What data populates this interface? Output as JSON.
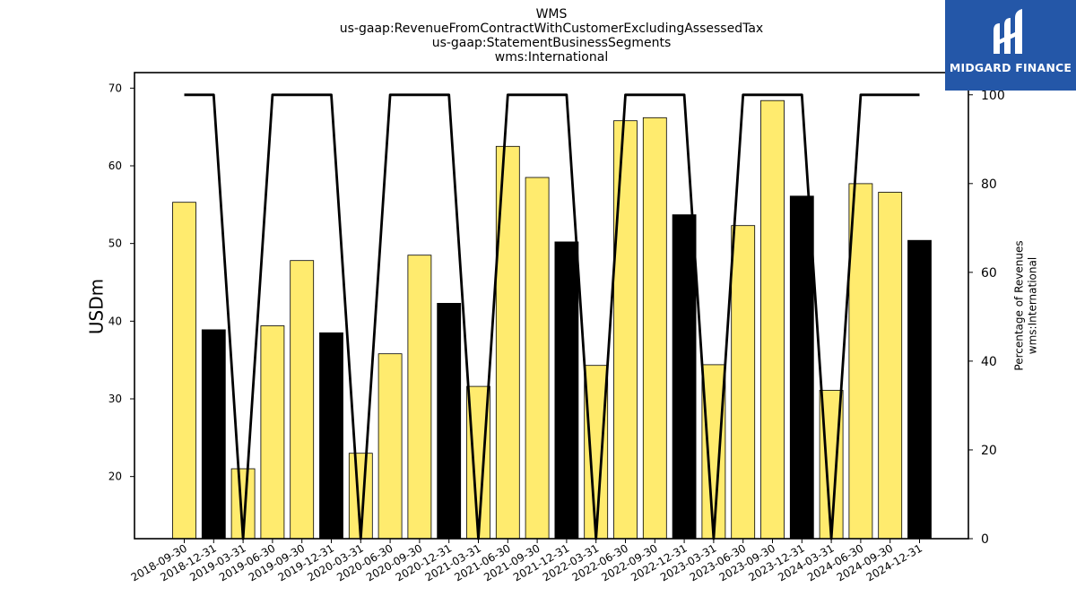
{
  "chart_data": {
    "type": "bar",
    "title_lines": [
      "WMS",
      "us-gaap:RevenueFromContractWithCustomerExcludingAssessedTax",
      "us-gaap:StatementBusinessSegments",
      "wms:International"
    ],
    "ylabel": "USDm",
    "ylabel_right_lines": [
      "Percentage of Revenues",
      "wms:International"
    ],
    "categories": [
      "2018-09-30",
      "2018-12-31",
      "2019-03-31",
      "2019-06-30",
      "2019-09-30",
      "2019-12-31",
      "2020-03-31",
      "2020-06-30",
      "2020-09-30",
      "2020-12-31",
      "2021-03-31",
      "2021-06-30",
      "2021-09-30",
      "2021-12-31",
      "2022-03-31",
      "2022-06-30",
      "2022-09-30",
      "2022-12-31",
      "2023-03-31",
      "2023-06-30",
      "2023-09-30",
      "2023-12-31",
      "2024-03-31",
      "2024-06-30",
      "2024-09-30",
      "2024-12-31"
    ],
    "values": [
      55.3,
      38.9,
      21.0,
      39.4,
      47.8,
      38.5,
      23.0,
      35.8,
      48.5,
      42.3,
      31.6,
      62.5,
      58.5,
      50.2,
      34.3,
      65.8,
      66.2,
      53.7,
      34.4,
      52.3,
      68.4,
      56.1,
      31.1,
      57.7,
      56.6,
      50.4
    ],
    "bar_colors": [
      "#ffeb6e",
      "#000000",
      "#ffeb6e",
      "#ffeb6e",
      "#ffeb6e",
      "#000000",
      "#ffeb6e",
      "#ffeb6e",
      "#ffeb6e",
      "#000000",
      "#ffeb6e",
      "#ffeb6e",
      "#ffeb6e",
      "#000000",
      "#ffeb6e",
      "#ffeb6e",
      "#ffeb6e",
      "#000000",
      "#ffeb6e",
      "#ffeb6e",
      "#ffeb6e",
      "#000000",
      "#ffeb6e",
      "#ffeb6e",
      "#ffeb6e",
      "#000000"
    ],
    "percentage_line": [
      100,
      100,
      0,
      100,
      100,
      100,
      0,
      100,
      100,
      100,
      0,
      100,
      100,
      100,
      0,
      100,
      100,
      100,
      0,
      100,
      100,
      100,
      0,
      100,
      100,
      100
    ],
    "ylim": [
      12,
      72
    ],
    "yticks": [
      20,
      30,
      40,
      50,
      60,
      70
    ],
    "ylim_right": [
      0,
      105
    ],
    "yticks_right": [
      0,
      20,
      40,
      60,
      80,
      100
    ],
    "grid": false,
    "colors": {
      "bar_fill": "#ffeb6e",
      "year_end_bar": "#000000",
      "line": "#000000"
    }
  },
  "logo": {
    "text": "MIDGARD FINANCE",
    "background": "#2457a8"
  }
}
